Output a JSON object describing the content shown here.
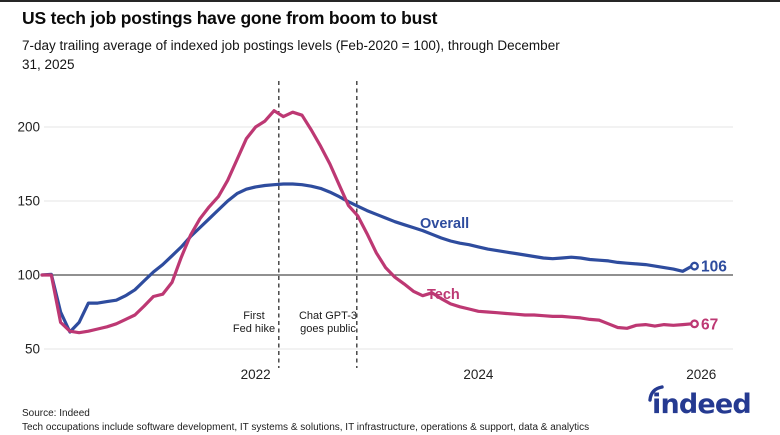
{
  "chart_data": {
    "type": "line",
    "title": "US tech job postings have gone from boom to bust",
    "subtitle": "7-day trailing average of indexed job postings levels (Feb-2020 = 100), through December 31, 2025",
    "x_start": "2020-02",
    "x_end": "2025-12",
    "frequency": "monthly",
    "x_tick_labels": [
      "2022",
      "2024",
      "2026"
    ],
    "x_tick_month_indices": [
      23,
      47,
      71
    ],
    "y_ticks": [
      50,
      100,
      150,
      200
    ],
    "ylim": [
      40,
      225
    ],
    "baseline_value": 100,
    "grid": "horizontal",
    "legend_position": "inline-labels",
    "series": [
      {
        "name": "Overall",
        "color": "#2e4c9e",
        "end_value": 106,
        "values": [
          100,
          100.5,
          75,
          61.5,
          68,
          81,
          81,
          82,
          83,
          86,
          90,
          96,
          102,
          107,
          113,
          119,
          126,
          132,
          138,
          144,
          150,
          155,
          158,
          159.5,
          160.5,
          161,
          161.5,
          161.5,
          161,
          160,
          158.5,
          156,
          153,
          149.5,
          146.5,
          143.5,
          141,
          138.5,
          136,
          134,
          132,
          130,
          127.5,
          125,
          123,
          121.5,
          120.5,
          119,
          117.5,
          116.5,
          115.5,
          114.5,
          113.5,
          112.5,
          111.5,
          111,
          111.5,
          112,
          111.5,
          110.5,
          110,
          109.5,
          108.5,
          108,
          107.5,
          107,
          106,
          105,
          104,
          102.5,
          106
        ]
      },
      {
        "name": "Tech",
        "color": "#bd3873",
        "end_value": 67,
        "values": [
          100,
          100,
          68,
          62,
          61,
          62,
          63.5,
          65,
          67,
          70,
          73,
          79,
          85.5,
          87,
          95,
          112,
          127,
          138,
          146,
          153,
          164,
          178,
          192,
          200,
          204,
          211,
          207,
          210,
          208,
          198,
          187,
          175,
          161,
          147,
          140,
          128,
          115,
          105,
          98.5,
          94,
          89,
          86,
          88,
          84,
          80.5,
          78.5,
          77,
          75.5,
          75,
          74.5,
          74,
          73.5,
          73,
          73,
          72.5,
          72,
          72,
          71.5,
          71,
          70,
          69.5,
          67,
          64.5,
          64,
          66,
          66.5,
          65.5,
          66.5,
          66,
          66.5,
          67
        ]
      }
    ],
    "annotations": [
      {
        "line1": "First",
        "line2": "Fed hike",
        "date": "2022-03",
        "month_index": 25.5
      },
      {
        "line1": "Chat GPT-3",
        "line2": "goes public",
        "date": "2022-11",
        "month_index": 33.9
      }
    ]
  },
  "footer": {
    "source": "Source: Indeed",
    "note": "Tech occupations include software development, IT systems & solutions, IT infrastructure, operations & support, data & analytics",
    "logo_text": "indeed"
  },
  "colors": {
    "overall": "#2e4c9e",
    "tech": "#bd3873",
    "baseline": "#4d4d4d",
    "grid": "#e4e4e4",
    "dashed_line": "#3b3b3b",
    "logo": "#253a91"
  }
}
